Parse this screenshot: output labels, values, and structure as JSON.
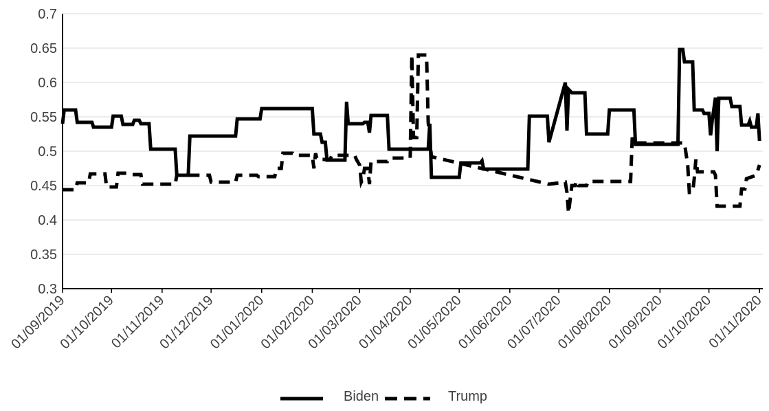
{
  "chart_data": {
    "type": "line",
    "title": "",
    "xlabel": "",
    "ylabel": "",
    "ylim": [
      0.3,
      0.7
    ],
    "yticks": [
      "0.3",
      "0.35",
      "0.4",
      "0.45",
      "0.5",
      "0.55",
      "0.6",
      "0.65",
      "0.7"
    ],
    "x_range": [
      "2019-09-01",
      "2020-11-03"
    ],
    "xticks": [
      {
        "date": "2019-09-01",
        "label": "01/09/2019"
      },
      {
        "date": "2019-10-01",
        "label": "01/10/2019"
      },
      {
        "date": "2019-11-01",
        "label": "01/11/2019"
      },
      {
        "date": "2019-12-01",
        "label": "01/12/2019"
      },
      {
        "date": "2020-01-01",
        "label": "01/01/2020"
      },
      {
        "date": "2020-02-01",
        "label": "01/02/2020"
      },
      {
        "date": "2020-03-01",
        "label": "01/03/2020"
      },
      {
        "date": "2020-04-01",
        "label": "01/04/2020"
      },
      {
        "date": "2020-05-01",
        "label": "01/05/2020"
      },
      {
        "date": "2020-06-01",
        "label": "01/06/2020"
      },
      {
        "date": "2020-07-01",
        "label": "01/07/2020"
      },
      {
        "date": "2020-08-01",
        "label": "01/08/2020"
      },
      {
        "date": "2020-09-01",
        "label": "01/09/2020"
      },
      {
        "date": "2020-10-01",
        "label": "01/10/2020"
      },
      {
        "date": "2020-11-01",
        "label": "01/11/2020"
      }
    ],
    "grid": true,
    "legend_position": "bottom-center",
    "series": [
      {
        "name": "Biden",
        "style": "solid",
        "color": "#000000",
        "points": [
          [
            "2019-09-01",
            0.54
          ],
          [
            "2019-09-02",
            0.56
          ],
          [
            "2019-09-09",
            0.56
          ],
          [
            "2019-09-10",
            0.542
          ],
          [
            "2019-09-19",
            0.542
          ],
          [
            "2019-09-20",
            0.535
          ],
          [
            "2019-10-01",
            0.535
          ],
          [
            "2019-10-02",
            0.551
          ],
          [
            "2019-10-07",
            0.551
          ],
          [
            "2019-10-08",
            0.539
          ],
          [
            "2019-10-14",
            0.539
          ],
          [
            "2019-10-15",
            0.545
          ],
          [
            "2019-10-18",
            0.545
          ],
          [
            "2019-10-19",
            0.54
          ],
          [
            "2019-10-24",
            0.54
          ],
          [
            "2019-10-25",
            0.503
          ],
          [
            "2019-11-09",
            0.503
          ],
          [
            "2019-11-10",
            0.465
          ],
          [
            "2019-11-17",
            0.465
          ],
          [
            "2019-11-18",
            0.522
          ],
          [
            "2019-12-16",
            0.522
          ],
          [
            "2019-12-17",
            0.547
          ],
          [
            "2019-12-31",
            0.547
          ],
          [
            "2020-01-01",
            0.562
          ],
          [
            "2020-02-01",
            0.562
          ],
          [
            "2020-02-02",
            0.525
          ],
          [
            "2020-02-06",
            0.525
          ],
          [
            "2020-02-07",
            0.513
          ],
          [
            "2020-02-09",
            0.513
          ],
          [
            "2020-02-10",
            0.487
          ],
          [
            "2020-02-21",
            0.487
          ],
          [
            "2020-02-22",
            0.572
          ],
          [
            "2020-02-23",
            0.54
          ],
          [
            "2020-03-03",
            0.54
          ],
          [
            "2020-03-04",
            0.542
          ],
          [
            "2020-03-06",
            0.542
          ],
          [
            "2020-03-07",
            0.527
          ],
          [
            "2020-03-08",
            0.552
          ],
          [
            "2020-03-18",
            0.552
          ],
          [
            "2020-03-19",
            0.503
          ],
          [
            "2020-04-12",
            0.503
          ],
          [
            "2020-04-13",
            0.54
          ],
          [
            "2020-04-14",
            0.462
          ],
          [
            "2020-05-01",
            0.462
          ],
          [
            "2020-05-02",
            0.483
          ],
          [
            "2020-05-14",
            0.483
          ],
          [
            "2020-05-15",
            0.486
          ],
          [
            "2020-05-16",
            0.474
          ],
          [
            "2020-06-12",
            0.474
          ],
          [
            "2020-06-13",
            0.551
          ],
          [
            "2020-06-24",
            0.551
          ],
          [
            "2020-06-25",
            0.513
          ],
          [
            "2020-07-05",
            0.6
          ],
          [
            "2020-07-06",
            0.53
          ],
          [
            "2020-07-07",
            0.59
          ],
          [
            "2020-07-09",
            0.585
          ],
          [
            "2020-07-17",
            0.585
          ],
          [
            "2020-07-18",
            0.525
          ],
          [
            "2020-07-31",
            0.525
          ],
          [
            "2020-08-01",
            0.56
          ],
          [
            "2020-08-16",
            0.56
          ],
          [
            "2020-08-17",
            0.51
          ],
          [
            "2020-09-12",
            0.51
          ],
          [
            "2020-09-13",
            0.648
          ],
          [
            "2020-09-15",
            0.648
          ],
          [
            "2020-09-16",
            0.63
          ],
          [
            "2020-09-21",
            0.63
          ],
          [
            "2020-09-22",
            0.56
          ],
          [
            "2020-09-27",
            0.56
          ],
          [
            "2020-09-28",
            0.555
          ],
          [
            "2020-10-01",
            0.555
          ],
          [
            "2020-10-02",
            0.523
          ],
          [
            "2020-10-03",
            0.545
          ],
          [
            "2020-10-05",
            0.578
          ],
          [
            "2020-10-06",
            0.5
          ],
          [
            "2020-10-07",
            0.577
          ],
          [
            "2020-10-14",
            0.577
          ],
          [
            "2020-10-15",
            0.565
          ],
          [
            "2020-10-20",
            0.565
          ],
          [
            "2020-10-21",
            0.538
          ],
          [
            "2020-10-25",
            0.538
          ],
          [
            "2020-10-26",
            0.544
          ],
          [
            "2020-10-27",
            0.535
          ],
          [
            "2020-10-30",
            0.535
          ],
          [
            "2020-10-31",
            0.555
          ],
          [
            "2020-11-01",
            0.515
          ]
        ]
      },
      {
        "name": "Trump",
        "style": "dashed",
        "color": "#000000",
        "points": [
          [
            "2019-09-01",
            0.444
          ],
          [
            "2019-09-09",
            0.444
          ],
          [
            "2019-09-10",
            0.454
          ],
          [
            "2019-09-17",
            0.454
          ],
          [
            "2019-09-18",
            0.467
          ],
          [
            "2019-09-27",
            0.467
          ],
          [
            "2019-09-28",
            0.448
          ],
          [
            "2019-10-04",
            0.448
          ],
          [
            "2019-10-05",
            0.468
          ],
          [
            "2019-10-12",
            0.468
          ],
          [
            "2019-10-13",
            0.466
          ],
          [
            "2019-10-19",
            0.466
          ],
          [
            "2019-10-20",
            0.452
          ],
          [
            "2019-11-09",
            0.452
          ],
          [
            "2019-11-10",
            0.465
          ],
          [
            "2019-11-30",
            0.465
          ],
          [
            "2019-12-01",
            0.455
          ],
          [
            "2019-12-16",
            0.455
          ],
          [
            "2019-12-17",
            0.465
          ],
          [
            "2019-12-29",
            0.465
          ],
          [
            "2019-12-30",
            0.463
          ],
          [
            "2020-01-09",
            0.463
          ],
          [
            "2020-01-10",
            0.475
          ],
          [
            "2020-01-13",
            0.475
          ],
          [
            "2020-01-14",
            0.497
          ],
          [
            "2020-01-20",
            0.497
          ],
          [
            "2020-01-21",
            0.494
          ],
          [
            "2020-02-01",
            0.494
          ],
          [
            "2020-02-02",
            0.475
          ],
          [
            "2020-02-03",
            0.497
          ],
          [
            "2020-02-04",
            0.488
          ],
          [
            "2020-02-12",
            0.488
          ],
          [
            "2020-02-13",
            0.494
          ],
          [
            "2020-02-27",
            0.494
          ],
          [
            "2020-02-28",
            0.488
          ],
          [
            "2020-03-01",
            0.48
          ],
          [
            "2020-03-02",
            0.455
          ],
          [
            "2020-03-03",
            0.46
          ],
          [
            "2020-03-04",
            0.475
          ],
          [
            "2020-03-06",
            0.475
          ],
          [
            "2020-03-07",
            0.452
          ],
          [
            "2020-03-08",
            0.485
          ],
          [
            "2020-03-18",
            0.485
          ],
          [
            "2020-03-19",
            0.49
          ],
          [
            "2020-04-01",
            0.49
          ],
          [
            "2020-04-02",
            0.64
          ],
          [
            "2020-04-03",
            0.52
          ],
          [
            "2020-04-05",
            0.52
          ],
          [
            "2020-04-06",
            0.64
          ],
          [
            "2020-04-11",
            0.64
          ],
          [
            "2020-04-12",
            0.542
          ],
          [
            "2020-04-14",
            0.492
          ],
          [
            "2020-06-25",
            0.452
          ],
          [
            "2020-07-05",
            0.455
          ],
          [
            "2020-07-06",
            0.44
          ],
          [
            "2020-07-07",
            0.41
          ],
          [
            "2020-07-08",
            0.43
          ],
          [
            "2020-07-09",
            0.45
          ],
          [
            "2020-07-11",
            0.45
          ],
          [
            "2020-07-12",
            0.457
          ],
          [
            "2020-07-13",
            0.45
          ],
          [
            "2020-07-18",
            0.45
          ],
          [
            "2020-07-19",
            0.456
          ],
          [
            "2020-08-14",
            0.456
          ],
          [
            "2020-08-15",
            0.52
          ],
          [
            "2020-08-16",
            0.512
          ],
          [
            "2020-09-16",
            0.512
          ],
          [
            "2020-09-18",
            0.48
          ],
          [
            "2020-09-19",
            0.44
          ],
          [
            "2020-09-21",
            0.44
          ],
          [
            "2020-09-22",
            0.46
          ],
          [
            "2020-09-23",
            0.488
          ],
          [
            "2020-09-24",
            0.47
          ],
          [
            "2020-10-04",
            0.47
          ],
          [
            "2020-10-05",
            0.465
          ],
          [
            "2020-10-06",
            0.42
          ],
          [
            "2020-10-20",
            0.42
          ],
          [
            "2020-10-21",
            0.445
          ],
          [
            "2020-10-23",
            0.445
          ],
          [
            "2020-10-24",
            0.46
          ],
          [
            "2020-10-30",
            0.465
          ],
          [
            "2020-11-01",
            0.48
          ]
        ]
      }
    ]
  }
}
